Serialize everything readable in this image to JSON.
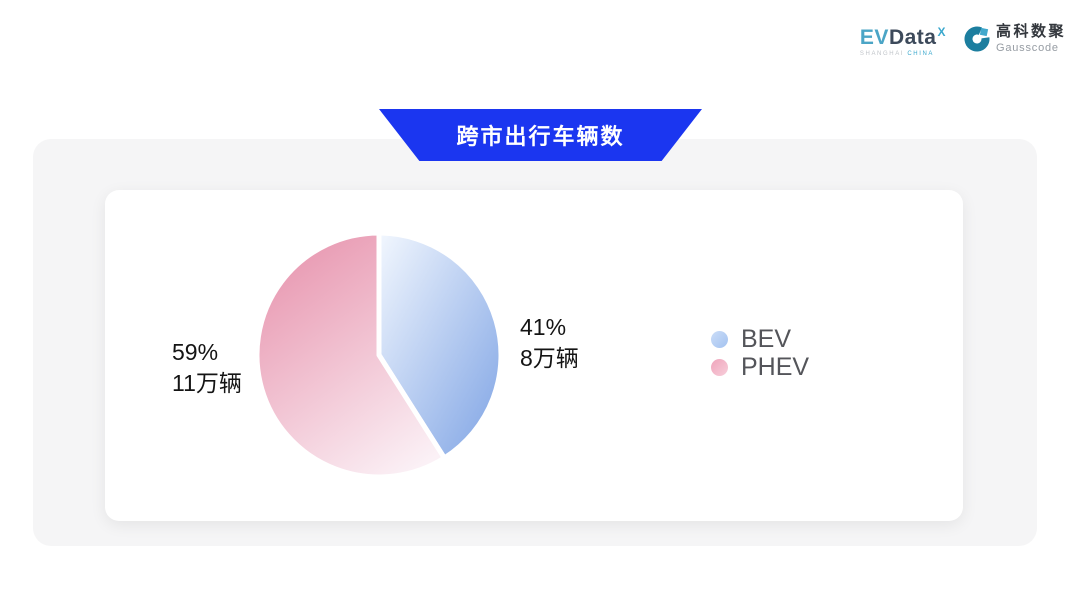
{
  "header": {
    "evdata": {
      "ev": "EV",
      "data": "Data",
      "sup": "X",
      "caption_left": "SHANGHAI",
      "caption_right": "CHINA"
    },
    "gausscode": {
      "cn": "高科数聚",
      "en": "Gausscode"
    }
  },
  "title_banner": {
    "text": "跨市出行车辆数",
    "bg_color": "#1B36F0",
    "text_color": "#FFFFFF"
  },
  "chart_data": {
    "type": "pie",
    "title": "跨市出行车辆数",
    "unit": "万辆",
    "total_label_format": "percent + value",
    "start_angle_deg": 0,
    "clockwise": true,
    "legend_position": "right",
    "series": [
      {
        "name": "BEV",
        "percent": 41,
        "value": 8,
        "percent_label": "41%",
        "value_label": "8万辆",
        "label_side": "right",
        "gradient": [
          "#F2F7FE",
          "#7EA3E4"
        ],
        "legend_gradient": [
          "#CBDDF8",
          "#A3C2F0"
        ]
      },
      {
        "name": "PHEV",
        "percent": 59,
        "value": 11,
        "percent_label": "59%",
        "value_label": "11万辆",
        "label_side": "left",
        "gradient": [
          "#E897B0",
          "#FBF1F6"
        ],
        "legend_gradient": [
          "#EFA4BB",
          "#F7CEDA"
        ]
      }
    ]
  }
}
